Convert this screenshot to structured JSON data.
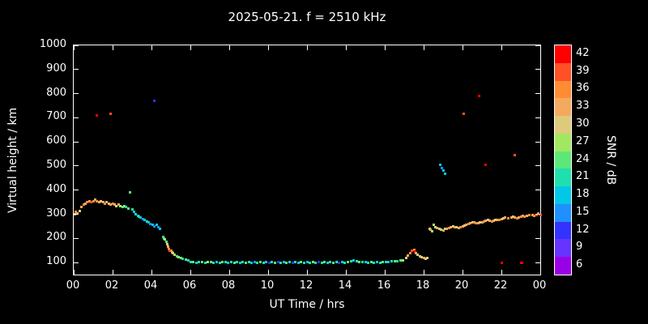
{
  "colors": {
    "background": "#000000",
    "axis": "#ffffff"
  },
  "x_axis": {
    "label": "UT Time / hrs",
    "ticks": [
      "00",
      "02",
      "04",
      "06",
      "08",
      "10",
      "12",
      "14",
      "16",
      "18",
      "20",
      "22",
      "00"
    ]
  },
  "y_axis": {
    "label": "Virtual height / km",
    "ticks": [
      "100",
      "200",
      "300",
      "400",
      "500",
      "600",
      "700",
      "800",
      "900",
      "1000"
    ]
  },
  "colorbar": {
    "label": "SNR / dB",
    "ticks": [
      "42",
      "39",
      "36",
      "33",
      "30",
      "27",
      "24",
      "21",
      "18",
      "15",
      "12",
      "9",
      "6"
    ],
    "palette": {
      "6": "#9a00e6",
      "9": "#6633ff",
      "12": "#3333ff",
      "15": "#1e90ff",
      "18": "#00c8e6",
      "21": "#20dfae",
      "24": "#5ce878",
      "27": "#a0e860",
      "30": "#ddca7a",
      "33": "#f5a95f",
      "36": "#ff8c33",
      "39": "#ff5026",
      "42": "#ff0000"
    }
  },
  "chart_data": {
    "type": "scatter",
    "title": "2025-05-21. f = 2510 kHz",
    "xlabel": "UT Time / hrs",
    "ylabel": "Virtual height / km",
    "xlim": [
      0,
      24
    ],
    "ylim": [
      50,
      1000
    ],
    "grid": false,
    "legend": "colorbar-right",
    "points": [
      [
        0.05,
        300,
        33
      ],
      [
        0.1,
        310,
        36
      ],
      [
        0.2,
        305,
        33
      ],
      [
        0.3,
        315,
        30
      ],
      [
        0.4,
        330,
        33
      ],
      [
        0.5,
        340,
        36
      ],
      [
        0.6,
        345,
        33
      ],
      [
        0.7,
        350,
        36
      ],
      [
        0.8,
        355,
        33
      ],
      [
        0.9,
        350,
        39
      ],
      [
        1.0,
        355,
        36
      ],
      [
        1.1,
        360,
        33
      ],
      [
        1.2,
        355,
        36
      ],
      [
        1.3,
        350,
        33
      ],
      [
        1.4,
        355,
        30
      ],
      [
        1.5,
        350,
        33
      ],
      [
        1.6,
        345,
        36
      ],
      [
        1.7,
        350,
        33
      ],
      [
        1.8,
        345,
        30
      ],
      [
        1.9,
        340,
        33
      ],
      [
        2.0,
        345,
        36
      ],
      [
        2.1,
        340,
        33
      ],
      [
        2.2,
        335,
        30
      ],
      [
        2.3,
        340,
        33
      ],
      [
        2.4,
        335,
        27
      ],
      [
        2.5,
        330,
        24
      ],
      [
        2.6,
        335,
        27
      ],
      [
        2.7,
        330,
        21
      ],
      [
        2.8,
        325,
        24
      ],
      [
        2.9,
        390,
        24
      ],
      [
        3.0,
        320,
        21
      ],
      [
        3.1,
        310,
        18
      ],
      [
        3.2,
        300,
        21
      ],
      [
        3.3,
        295,
        18
      ],
      [
        3.35,
        290,
        21
      ],
      [
        3.45,
        285,
        18
      ],
      [
        3.55,
        280,
        15
      ],
      [
        3.65,
        275,
        18
      ],
      [
        3.75,
        270,
        21
      ],
      [
        3.85,
        265,
        18
      ],
      [
        3.95,
        260,
        15
      ],
      [
        4.05,
        255,
        18
      ],
      [
        4.15,
        250,
        15
      ],
      [
        4.25,
        255,
        18
      ],
      [
        4.35,
        245,
        15
      ],
      [
        4.45,
        240,
        18
      ],
      [
        1.2,
        710,
        42
      ],
      [
        1.9,
        715,
        39
      ],
      [
        4.15,
        770,
        12
      ],
      [
        4.6,
        205,
        21
      ],
      [
        4.65,
        200,
        24
      ],
      [
        4.7,
        195,
        27
      ],
      [
        4.75,
        185,
        24
      ],
      [
        4.8,
        175,
        30
      ],
      [
        4.85,
        165,
        33
      ],
      [
        4.9,
        155,
        36
      ],
      [
        4.95,
        150,
        39
      ],
      [
        5.0,
        148,
        36
      ],
      [
        5.05,
        143,
        33
      ],
      [
        5.1,
        138,
        30
      ],
      [
        5.2,
        132,
        27
      ],
      [
        5.3,
        127,
        24
      ],
      [
        5.4,
        122,
        27
      ],
      [
        5.5,
        118,
        24
      ],
      [
        5.6,
        115,
        21
      ],
      [
        5.75,
        112,
        24
      ],
      [
        5.9,
        110,
        21
      ],
      [
        6.0,
        102,
        21
      ],
      [
        6.15,
        101,
        24
      ],
      [
        6.3,
        100,
        18
      ],
      [
        6.45,
        102,
        21
      ],
      [
        6.6,
        101,
        24
      ],
      [
        6.75,
        100,
        21
      ],
      [
        6.9,
        102,
        27
      ],
      [
        7.05,
        101,
        24
      ],
      [
        7.2,
        100,
        21
      ],
      [
        7.35,
        101,
        18
      ],
      [
        7.5,
        100,
        21
      ],
      [
        7.65,
        102,
        24
      ],
      [
        7.8,
        101,
        21
      ],
      [
        7.95,
        100,
        18
      ],
      [
        8.1,
        101,
        21
      ],
      [
        8.25,
        100,
        24
      ],
      [
        8.4,
        101,
        21
      ],
      [
        8.55,
        100,
        18
      ],
      [
        8.7,
        101,
        21
      ],
      [
        8.85,
        100,
        24
      ],
      [
        9.0,
        101,
        21
      ],
      [
        9.15,
        100,
        18
      ],
      [
        9.3,
        101,
        15
      ],
      [
        9.45,
        100,
        21
      ],
      [
        9.6,
        101,
        24
      ],
      [
        9.75,
        100,
        21
      ],
      [
        9.9,
        101,
        18
      ],
      [
        10.05,
        100,
        12
      ],
      [
        10.2,
        101,
        21
      ],
      [
        10.35,
        100,
        24
      ],
      [
        10.5,
        101,
        12
      ],
      [
        10.65,
        100,
        21
      ],
      [
        10.8,
        101,
        18
      ],
      [
        10.95,
        100,
        24
      ],
      [
        11.1,
        101,
        21
      ],
      [
        11.25,
        100,
        12
      ],
      [
        11.4,
        101,
        21
      ],
      [
        11.55,
        100,
        18
      ],
      [
        11.7,
        101,
        24
      ],
      [
        11.85,
        100,
        21
      ],
      [
        12.0,
        101,
        18
      ],
      [
        12.15,
        100,
        21
      ],
      [
        12.3,
        101,
        24
      ],
      [
        12.45,
        100,
        21
      ],
      [
        12.6,
        101,
        12
      ],
      [
        12.75,
        100,
        21
      ],
      [
        12.9,
        101,
        24
      ],
      [
        13.05,
        100,
        18
      ],
      [
        13.2,
        101,
        21
      ],
      [
        13.35,
        100,
        24
      ],
      [
        13.5,
        101,
        21
      ],
      [
        13.65,
        100,
        12
      ],
      [
        13.8,
        101,
        18
      ],
      [
        13.95,
        100,
        21
      ],
      [
        14.1,
        102,
        24
      ],
      [
        14.25,
        105,
        21
      ],
      [
        14.4,
        108,
        18
      ],
      [
        14.55,
        105,
        21
      ],
      [
        14.7,
        103,
        24
      ],
      [
        14.85,
        102,
        21
      ],
      [
        15.0,
        101,
        18
      ],
      [
        15.15,
        100,
        21
      ],
      [
        15.3,
        101,
        24
      ],
      [
        15.45,
        100,
        21
      ],
      [
        15.6,
        101,
        18
      ],
      [
        15.75,
        100,
        21
      ],
      [
        15.9,
        101,
        24
      ],
      [
        16.05,
        102,
        21
      ],
      [
        16.2,
        103,
        18
      ],
      [
        16.35,
        104,
        21
      ],
      [
        16.5,
        105,
        24
      ],
      [
        16.65,
        106,
        21
      ],
      [
        16.8,
        108,
        24
      ],
      [
        16.95,
        110,
        27
      ],
      [
        17.1,
        118,
        30
      ],
      [
        17.2,
        128,
        33
      ],
      [
        17.3,
        138,
        36
      ],
      [
        17.4,
        148,
        39
      ],
      [
        17.5,
        152,
        36
      ],
      [
        17.55,
        145,
        42
      ],
      [
        17.6,
        140,
        33
      ],
      [
        17.7,
        132,
        30
      ],
      [
        17.8,
        126,
        27
      ],
      [
        17.9,
        122,
        30
      ],
      [
        18.0,
        118,
        33
      ],
      [
        18.1,
        115,
        30
      ],
      [
        18.2,
        118,
        30
      ],
      [
        18.3,
        240,
        30
      ],
      [
        18.35,
        235,
        33
      ],
      [
        18.45,
        230,
        27
      ],
      [
        18.85,
        505,
        18
      ],
      [
        18.95,
        492,
        15
      ],
      [
        19.0,
        480,
        18
      ],
      [
        19.1,
        468,
        18
      ],
      [
        18.5,
        255,
        27
      ],
      [
        18.6,
        248,
        30
      ],
      [
        18.7,
        243,
        33
      ],
      [
        18.8,
        240,
        30
      ],
      [
        18.9,
        236,
        27
      ],
      [
        19.0,
        234,
        33
      ],
      [
        19.1,
        238,
        30
      ],
      [
        19.2,
        240,
        33
      ],
      [
        19.3,
        243,
        36
      ],
      [
        19.4,
        246,
        33
      ],
      [
        19.5,
        250,
        30
      ],
      [
        19.6,
        248,
        33
      ],
      [
        19.7,
        245,
        30
      ],
      [
        19.8,
        242,
        33
      ],
      [
        19.9,
        246,
        36
      ],
      [
        20.0,
        250,
        33
      ],
      [
        20.1,
        253,
        30
      ],
      [
        20.2,
        256,
        33
      ],
      [
        20.3,
        260,
        36
      ],
      [
        20.4,
        263,
        33
      ],
      [
        20.5,
        266,
        30
      ],
      [
        20.6,
        268,
        33
      ],
      [
        20.7,
        264,
        36
      ],
      [
        20.8,
        262,
        33
      ],
      [
        20.9,
        265,
        30
      ],
      [
        21.0,
        268,
        33
      ],
      [
        21.1,
        271,
        36
      ],
      [
        21.2,
        273,
        33
      ],
      [
        21.3,
        276,
        30
      ],
      [
        21.4,
        272,
        33
      ],
      [
        21.5,
        270,
        36
      ],
      [
        21.6,
        273,
        33
      ],
      [
        21.7,
        276,
        30
      ],
      [
        21.8,
        278,
        33
      ],
      [
        21.9,
        275,
        36
      ],
      [
        22.0,
        280,
        33
      ],
      [
        22.1,
        283,
        30
      ],
      [
        22.2,
        285,
        33
      ],
      [
        22.35,
        282,
        36
      ],
      [
        22.5,
        286,
        33
      ],
      [
        22.6,
        290,
        30
      ],
      [
        22.7,
        287,
        33
      ],
      [
        22.8,
        284,
        36
      ],
      [
        22.9,
        288,
        33
      ],
      [
        23.0,
        291,
        36
      ],
      [
        23.1,
        294,
        33
      ],
      [
        23.2,
        290,
        36
      ],
      [
        23.3,
        293,
        33
      ],
      [
        23.45,
        296,
        36
      ],
      [
        23.6,
        298,
        33
      ],
      [
        23.7,
        295,
        36
      ],
      [
        23.8,
        298,
        39
      ],
      [
        23.9,
        302,
        36
      ],
      [
        24.0,
        297,
        39
      ],
      [
        20.05,
        715,
        39
      ],
      [
        20.85,
        790,
        42
      ],
      [
        21.2,
        505,
        42
      ],
      [
        22.7,
        545,
        39
      ],
      [
        22.0,
        100,
        42
      ],
      [
        23.0,
        100,
        42
      ],
      [
        23.08,
        98,
        42
      ]
    ]
  }
}
